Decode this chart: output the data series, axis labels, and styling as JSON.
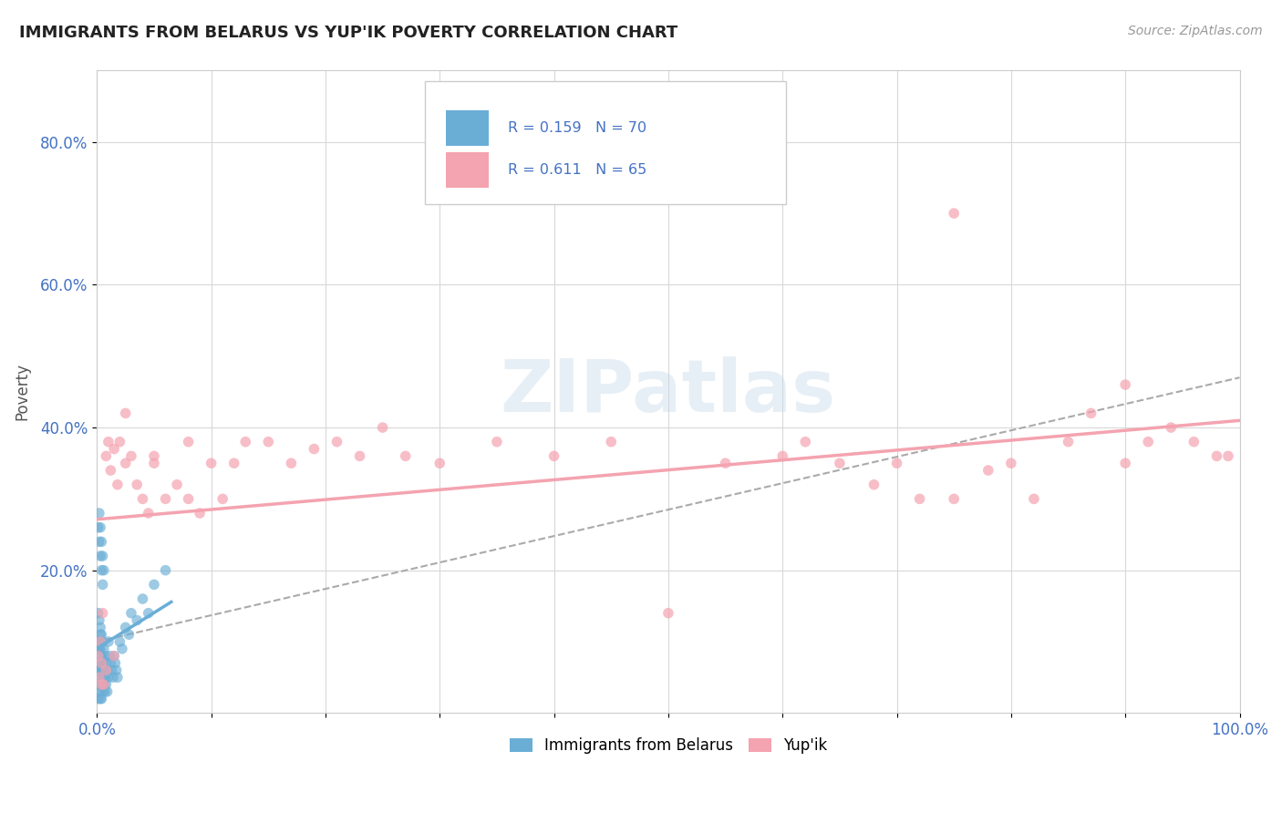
{
  "title": "IMMIGRANTS FROM BELARUS VS YUP'IK POVERTY CORRELATION CHART",
  "source": "Source: ZipAtlas.com",
  "ylabel": "Poverty",
  "xlim": [
    0.0,
    1.0
  ],
  "ylim": [
    0.0,
    0.9
  ],
  "belarus_color": "#6aaed6",
  "yupik_color": "#f4a3b0",
  "watermark": "ZIPatlas",
  "background_color": "#ffffff",
  "grid_color": "#d8d8d8",
  "legend_r1": "R = 0.159   N = 70",
  "legend_r2": "R = 0.611   N = 65",
  "belarus_x": [
    0.001,
    0.001,
    0.001,
    0.001,
    0.001,
    0.002,
    0.002,
    0.002,
    0.002,
    0.002,
    0.002,
    0.002,
    0.003,
    0.003,
    0.003,
    0.003,
    0.003,
    0.003,
    0.003,
    0.003,
    0.003,
    0.004,
    0.004,
    0.004,
    0.004,
    0.004,
    0.005,
    0.005,
    0.005,
    0.005,
    0.006,
    0.006,
    0.006,
    0.007,
    0.007,
    0.007,
    0.008,
    0.008,
    0.009,
    0.009,
    0.01,
    0.01,
    0.011,
    0.012,
    0.013,
    0.014,
    0.015,
    0.016,
    0.017,
    0.018,
    0.02,
    0.022,
    0.025,
    0.028,
    0.03,
    0.035,
    0.04,
    0.045,
    0.05,
    0.06,
    0.001,
    0.002,
    0.003,
    0.004,
    0.005,
    0.002,
    0.003,
    0.004,
    0.005,
    0.006
  ],
  "belarus_y": [
    0.14,
    0.09,
    0.06,
    0.04,
    0.02,
    0.13,
    0.1,
    0.07,
    0.05,
    0.03,
    0.09,
    0.06,
    0.12,
    0.1,
    0.08,
    0.06,
    0.04,
    0.02,
    0.11,
    0.09,
    0.07,
    0.11,
    0.08,
    0.06,
    0.04,
    0.02,
    0.1,
    0.07,
    0.05,
    0.03,
    0.09,
    0.06,
    0.04,
    0.08,
    0.05,
    0.03,
    0.07,
    0.04,
    0.06,
    0.03,
    0.1,
    0.05,
    0.08,
    0.07,
    0.06,
    0.05,
    0.08,
    0.07,
    0.06,
    0.05,
    0.1,
    0.09,
    0.12,
    0.11,
    0.14,
    0.13,
    0.16,
    0.14,
    0.18,
    0.2,
    0.26,
    0.24,
    0.22,
    0.2,
    0.18,
    0.28,
    0.26,
    0.24,
    0.22,
    0.2
  ],
  "yupik_x": [
    0.001,
    0.002,
    0.003,
    0.004,
    0.005,
    0.006,
    0.008,
    0.01,
    0.012,
    0.015,
    0.018,
    0.02,
    0.025,
    0.03,
    0.035,
    0.04,
    0.045,
    0.05,
    0.06,
    0.07,
    0.08,
    0.09,
    0.1,
    0.11,
    0.12,
    0.13,
    0.15,
    0.17,
    0.19,
    0.21,
    0.23,
    0.25,
    0.27,
    0.3,
    0.35,
    0.4,
    0.45,
    0.5,
    0.55,
    0.6,
    0.62,
    0.65,
    0.68,
    0.7,
    0.72,
    0.75,
    0.78,
    0.8,
    0.82,
    0.85,
    0.87,
    0.9,
    0.92,
    0.94,
    0.96,
    0.98,
    0.99,
    0.004,
    0.008,
    0.015,
    0.025,
    0.05,
    0.08,
    0.75,
    0.9
  ],
  "yupik_y": [
    0.08,
    0.05,
    0.1,
    0.07,
    0.14,
    0.04,
    0.36,
    0.38,
    0.34,
    0.37,
    0.32,
    0.38,
    0.35,
    0.36,
    0.32,
    0.3,
    0.28,
    0.35,
    0.3,
    0.32,
    0.3,
    0.28,
    0.35,
    0.3,
    0.35,
    0.38,
    0.38,
    0.35,
    0.37,
    0.38,
    0.36,
    0.4,
    0.36,
    0.35,
    0.38,
    0.36,
    0.38,
    0.14,
    0.35,
    0.36,
    0.38,
    0.35,
    0.32,
    0.35,
    0.3,
    0.3,
    0.34,
    0.35,
    0.3,
    0.38,
    0.42,
    0.35,
    0.38,
    0.4,
    0.38,
    0.36,
    0.36,
    0.04,
    0.06,
    0.08,
    0.42,
    0.36,
    0.38,
    0.7,
    0.46
  ]
}
